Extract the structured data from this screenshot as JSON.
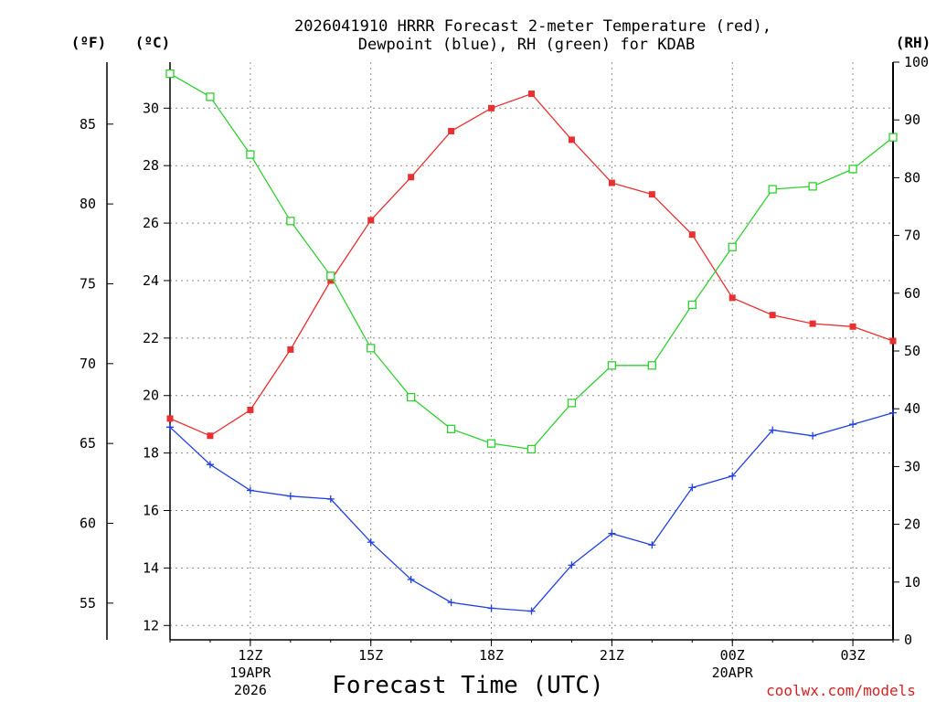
{
  "chart_data": {
    "type": "line",
    "title": "2026041910 HRRR Forecast 2-meter Temperature (red),",
    "subtitle": "Dewpoint (blue), RH (green) for KDAB",
    "xlabel": "Forecast Time (UTC)",
    "credit": "coolwx.com/models",
    "units": {
      "fahrenheit": "(ºF)",
      "celsius": "(ºC)",
      "rh": "(RH)"
    },
    "x_hours": [
      10,
      11,
      12,
      13,
      14,
      15,
      16,
      17,
      18,
      19,
      20,
      21,
      22,
      23,
      24,
      25,
      26,
      27,
      28
    ],
    "xlim": [
      10,
      28
    ],
    "x_ticks": [
      {
        "hour": 12,
        "label": "12Z",
        "date": "19APR",
        "year": "2026"
      },
      {
        "hour": 15,
        "label": "15Z",
        "date": "",
        "year": ""
      },
      {
        "hour": 18,
        "label": "18Z",
        "date": "",
        "year": ""
      },
      {
        "hour": 21,
        "label": "21Z",
        "date": "",
        "year": ""
      },
      {
        "hour": 24,
        "label": "00Z",
        "date": "20APR",
        "year": ""
      },
      {
        "hour": 27,
        "label": "03Z",
        "date": "",
        "year": ""
      }
    ],
    "ylim_c": [
      11.5,
      31.6
    ],
    "ylim_rh": [
      0,
      100
    ],
    "celsius_ticks": [
      "12",
      "14",
      "16",
      "18",
      "20",
      "22",
      "24",
      "26",
      "28",
      "30"
    ],
    "fahrenheit_ticks": [
      "55",
      "60",
      "65",
      "70",
      "75",
      "80",
      "85"
    ],
    "rh_ticks": [
      "0",
      "10",
      "20",
      "30",
      "40",
      "50",
      "60",
      "70",
      "80",
      "90",
      "100"
    ],
    "series": [
      {
        "name": "Temperature",
        "unit": "C",
        "color": "#e83030",
        "marker": "filled-square",
        "values": [
          19.2,
          18.6,
          19.5,
          21.6,
          24.0,
          26.1,
          27.6,
          29.2,
          30.0,
          30.5,
          28.9,
          27.4,
          27.0,
          25.6,
          23.4,
          22.8,
          22.5,
          22.4,
          21.9
        ]
      },
      {
        "name": "Dewpoint",
        "unit": "C",
        "color": "#2040e0",
        "marker": "plus",
        "values": [
          18.9,
          17.6,
          16.7,
          16.5,
          16.4,
          14.9,
          13.6,
          12.8,
          12.6,
          12.5,
          14.1,
          15.2,
          14.8,
          16.8,
          17.2,
          18.8,
          18.6,
          19.0,
          19.4
        ]
      },
      {
        "name": "RH",
        "unit": "%",
        "color": "#30d030",
        "marker": "open-square",
        "values": [
          98,
          94,
          84,
          72.5,
          63,
          50.5,
          42,
          36.5,
          34,
          33,
          41,
          47.5,
          47.5,
          58,
          68,
          78,
          78.5,
          81.5,
          87
        ]
      }
    ]
  }
}
